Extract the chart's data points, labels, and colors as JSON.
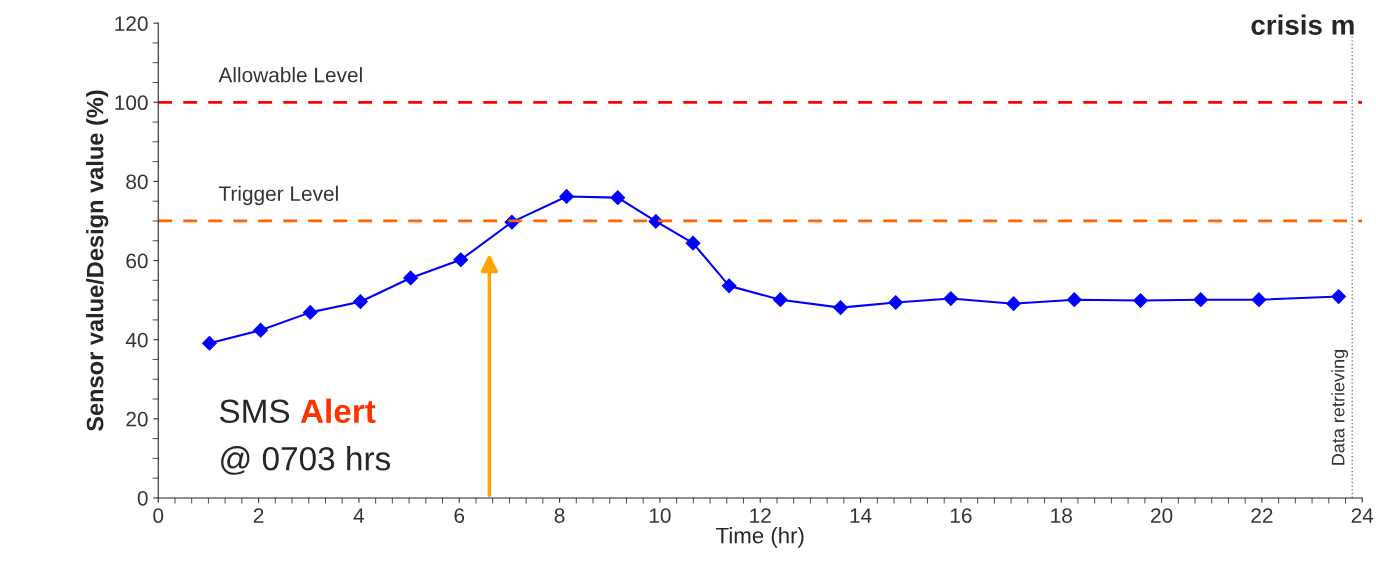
{
  "chart_data": {
    "type": "line",
    "title": "crisis m",
    "xlabel": "Time (hr)",
    "ylabel": "Sensor value/Design value (%)",
    "series": [
      {
        "color": "#0000ff",
        "x": [
          1.02,
          2.04,
          3.03,
          4.03,
          5.03,
          6.03,
          7.05,
          8.14,
          9.16,
          9.92,
          10.66,
          11.38,
          12.4,
          13.6,
          14.7,
          15.8,
          17.05,
          18.26,
          19.58,
          20.78,
          21.94,
          23.53
        ],
        "values": [
          39.1,
          42.4,
          46.9,
          49.6,
          55.6,
          60.2,
          69.7,
          76.2,
          75.9,
          69.9,
          64.4,
          53.6,
          50.1,
          48.1,
          49.4,
          50.4,
          49.1,
          50.1,
          49.9,
          50.1,
          50.1,
          50.9
        ]
      }
    ],
    "marker": "diamond",
    "line_style": "solid",
    "grid": false,
    "legend": false,
    "xlim": [
      0,
      24
    ],
    "xticks": [
      0,
      2,
      4,
      6,
      8,
      10,
      12,
      14,
      16,
      18,
      20,
      22,
      24
    ],
    "ylim": [
      0,
      120
    ],
    "yticks": [
      0,
      20,
      40,
      60,
      80,
      100,
      120
    ],
    "ref_lines": [
      {
        "axis": "y",
        "value": 100,
        "label": "Allowable Level",
        "color": "#ff0000",
        "line_style": "dashed"
      },
      {
        "axis": "y",
        "value": 70,
        "label": "Trigger Level",
        "color": "#ff6600",
        "line_style": "dashed"
      },
      {
        "axis": "x",
        "value": 23.8,
        "label": "Data retrieving",
        "color": "#808080",
        "line_style": "dotted"
      }
    ],
    "annotations": [
      "SMS Alert @ 0703 hrs"
    ]
  }
}
